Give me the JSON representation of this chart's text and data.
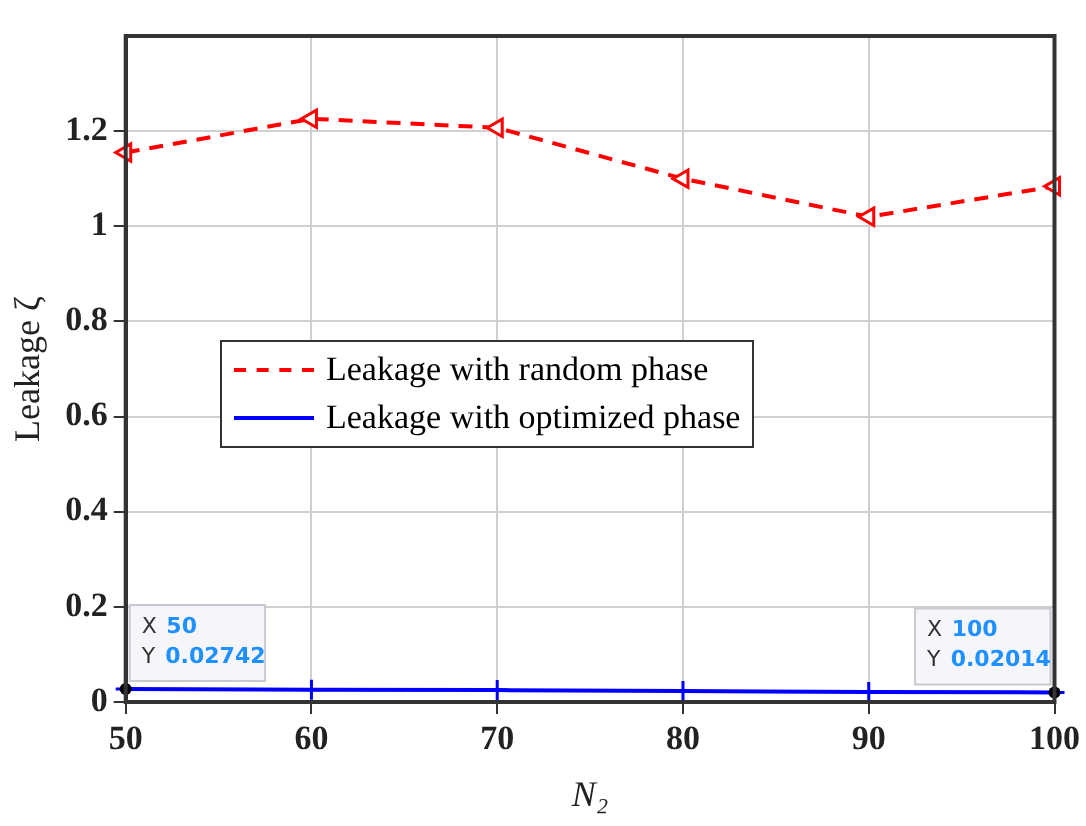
{
  "chart_data": {
    "type": "line",
    "xlabel": "N₂",
    "ylabel": "Leakage ζ",
    "x": [
      50,
      60,
      70,
      80,
      90,
      100
    ],
    "series": [
      {
        "name": "Leakage with random phase",
        "color": "#ff0000",
        "values": [
          1.155,
          1.226,
          1.207,
          1.1,
          1.02,
          1.084
        ],
        "marker": "triangle",
        "line_style": "dashed"
      },
      {
        "name": "Leakage with optimized phase",
        "color": "#0000ff",
        "values": [
          0.02742,
          0.026,
          0.025,
          0.023,
          0.021,
          0.02014
        ],
        "marker": "cross",
        "line_style": "solid"
      }
    ],
    "xlim": [
      50,
      100
    ],
    "xticks": [
      50,
      60,
      70,
      80,
      90,
      100
    ],
    "ylim": [
      0,
      1.4
    ],
    "yticks": [
      0,
      0.2,
      0.4,
      0.6,
      0.8,
      1,
      1.2
    ],
    "grid": true,
    "legend": "left",
    "annotations": [
      {
        "text": "X 50\nY 0.02742",
        "x": 50,
        "y": 0.02742
      },
      {
        "text": "X 100\nY 0.02014",
        "x": 100,
        "y": 0.02014
      }
    ]
  }
}
